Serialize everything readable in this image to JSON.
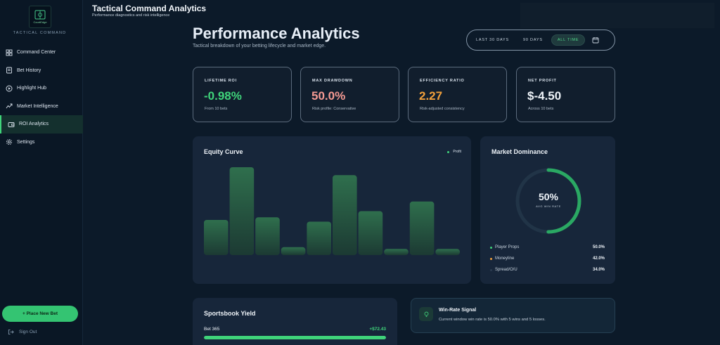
{
  "brand": {
    "logo_text": "CourtEdge",
    "subtitle": "TACTICAL COMMAND"
  },
  "sidebar": {
    "items": [
      {
        "label": "Command Center",
        "icon": "grid-icon"
      },
      {
        "label": "Bet History",
        "icon": "receipt-icon"
      },
      {
        "label": "Highlight Hub",
        "icon": "play-circle-icon"
      },
      {
        "label": "Market Intelligence",
        "icon": "trend-icon"
      },
      {
        "label": "ROI Analytics",
        "icon": "wallet-icon",
        "active": true
      },
      {
        "label": "Settings",
        "icon": "gear-icon"
      }
    ],
    "place_bet": "+ Place New Bet",
    "sign_out": "Sign Out"
  },
  "header": {
    "title": "Tactical Command Analytics",
    "subtitle": "Performance diagnostics and risk intelligence"
  },
  "page": {
    "title": "Performance Analytics",
    "subtitle": "Tactical breakdown of your betting lifecycle and market edge."
  },
  "range": {
    "options": [
      "LAST 30 DAYS",
      "90 DAYS",
      "ALL TIME"
    ],
    "selected": "ALL TIME"
  },
  "stats": [
    {
      "label": "LIFETIME ROI",
      "value": "-0.98%",
      "note": "From 10 bets",
      "color": "#3fd37a"
    },
    {
      "label": "MAX DRAWDOWN",
      "value": "50.0%",
      "note": "Risk profile: Conservative",
      "color": "#f59a93"
    },
    {
      "label": "EFFICIENCY RATIO",
      "value": "2.27",
      "note": "Risk-adjusted consistency",
      "color": "#f2a03b"
    },
    {
      "label": "NET PROFIT",
      "value": "$-4.50",
      "note": "Across 10 bets",
      "color": "#eef3f8"
    }
  ],
  "equity": {
    "title": "Equity Curve",
    "legend": "Profit",
    "chart_data": {
      "type": "bar",
      "values": [
        40,
        100,
        43,
        9,
        38,
        91,
        50,
        7,
        61,
        7
      ],
      "ylim": [
        0,
        100
      ]
    }
  },
  "market": {
    "title": "Market Dominance",
    "win_rate": "50%",
    "win_rate_fraction": 0.5,
    "win_rate_label": "AVG WIN RATE",
    "rows": [
      {
        "label": "Player Props",
        "pct": "50.0%",
        "color": "#3fd37a"
      },
      {
        "label": "Moneyline",
        "pct": "42.0%",
        "color": "#f2a03b"
      },
      {
        "label": "Spread/O/U",
        "pct": "34.0%",
        "color": "#2a3b50"
      }
    ]
  },
  "yield": {
    "title": "Sportsbook Yield",
    "rows": [
      {
        "name": "Bet 365",
        "amount": "+$72.43",
        "fraction": 1.0
      }
    ]
  },
  "signal": {
    "title": "Win-Rate Signal",
    "text": "Current window win rate is 50.0% with 5 wins and 5 losses."
  }
}
